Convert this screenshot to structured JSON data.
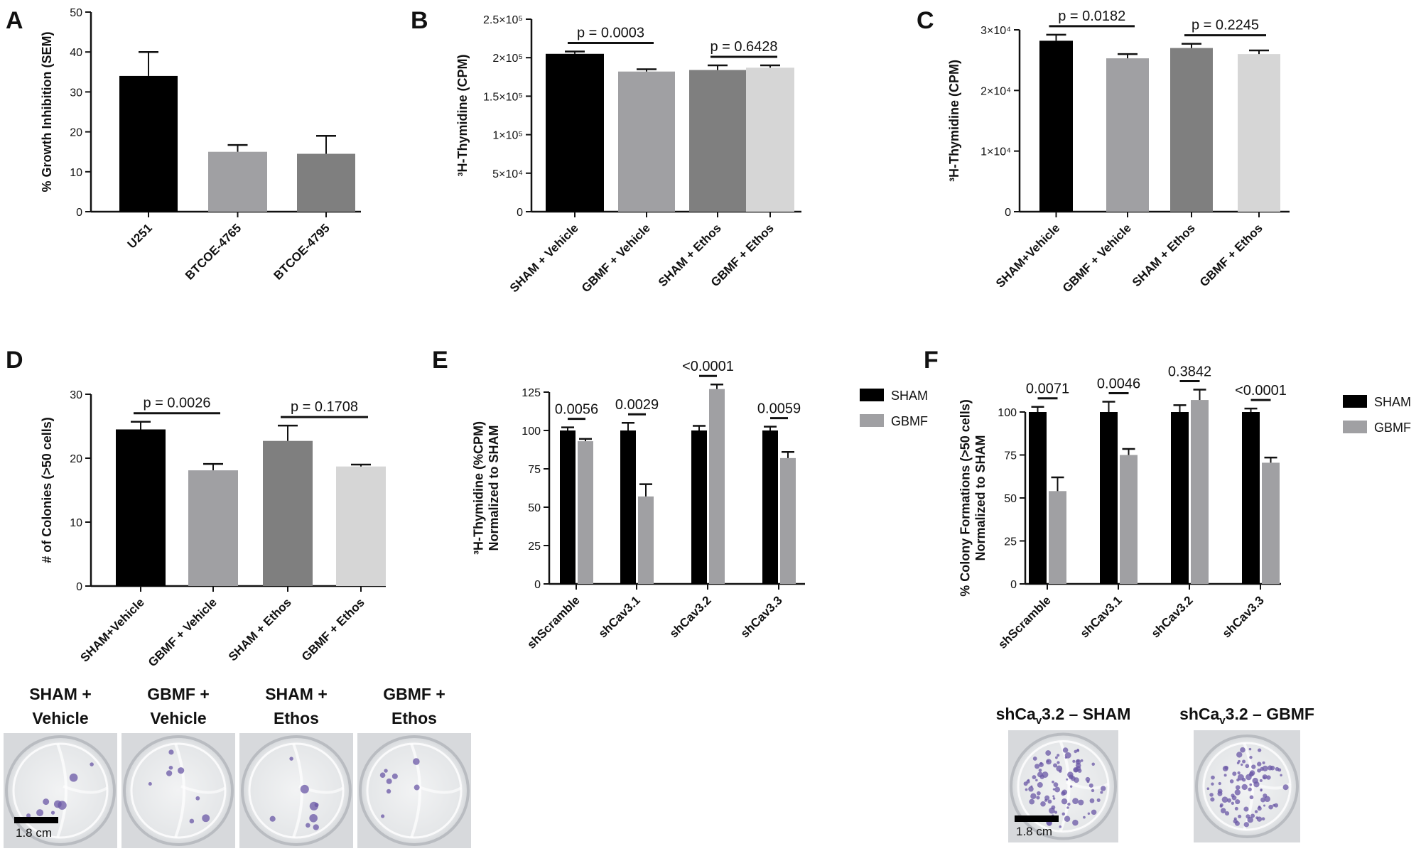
{
  "chart_data": [
    {
      "panel": "A",
      "type": "bar",
      "ylabel": "% Growth  Inhibition (SEM)",
      "ylim": [
        0,
        50
      ],
      "yticks": [
        "0",
        "10",
        "20",
        "30",
        "40",
        "50"
      ],
      "categories": [
        "U251",
        "BTCOE-4765",
        "BTCOE-4795"
      ],
      "values": [
        34,
        15,
        14.5
      ],
      "errors": [
        6,
        1.7,
        4.5
      ],
      "colors": [
        "#000000",
        "#a0a0a3",
        "#7f7f7f"
      ]
    },
    {
      "panel": "B",
      "type": "bar",
      "ylabel": "³H-Thymidine (CPM)",
      "ylim": [
        0,
        250000
      ],
      "yticks": [
        "0",
        "5×10⁴",
        "1×10⁵",
        "1.5×10⁵",
        "2×10⁵",
        "2.5×10⁵"
      ],
      "categories": [
        "SHAM + Vehicle",
        "GBMF + Vehicle",
        "SHAM + Ethos",
        "GBMF + Ethos"
      ],
      "values": [
        205000,
        182000,
        184000,
        187000
      ],
      "errors": [
        3000,
        3000,
        6000,
        3000
      ],
      "colors": [
        "#000000",
        "#a0a0a3",
        "#7f7f7f",
        "#d6d6d6"
      ],
      "comparisons": [
        {
          "from": 0,
          "to": 1,
          "label": "p = 0.0003"
        },
        {
          "from": 2,
          "to": 3,
          "label": "p = 0.6428"
        }
      ]
    },
    {
      "panel": "C",
      "type": "bar",
      "ylabel": "³H-Thymidine (CPM)",
      "ylim": [
        0,
        30000
      ],
      "yticks": [
        "0",
        "1×10⁴",
        "2×10⁴",
        "3×10⁴"
      ],
      "categories": [
        "SHAM+Vehicle",
        "GBMF + Vehicle",
        "SHAM + Ethos",
        "GBMF + Ethos"
      ],
      "values": [
        28200,
        25300,
        27000,
        26000
      ],
      "errors": [
        1000,
        700,
        700,
        600
      ],
      "colors": [
        "#000000",
        "#a0a0a3",
        "#7f7f7f",
        "#d6d6d6"
      ],
      "comparisons": [
        {
          "from": 0,
          "to": 1,
          "label": "p = 0.0182"
        },
        {
          "from": 2,
          "to": 3,
          "label": "p = 0.2245"
        }
      ]
    },
    {
      "panel": "D",
      "type": "bar",
      "ylabel": "# of Colonies (>50 cells)",
      "ylim": [
        0,
        30
      ],
      "yticks": [
        "0",
        "10",
        "20",
        "30"
      ],
      "categories": [
        "SHAM+Vehicle",
        "GBMF + Vehicle",
        "SHAM + Ethos",
        "GBMF + Ethos"
      ],
      "values": [
        24.5,
        18.1,
        22.7,
        18.7
      ],
      "errors": [
        1.2,
        1.0,
        2.4,
        0.3
      ],
      "colors": [
        "#000000",
        "#a0a0a3",
        "#7f7f7f",
        "#d6d6d6"
      ],
      "comparisons": [
        {
          "from": 0,
          "to": 1,
          "label": "p = 0.0026"
        },
        {
          "from": 2,
          "to": 3,
          "label": "p = 0.1708"
        }
      ]
    },
    {
      "panel": "E",
      "type": "bar",
      "ylabel": "³H-Thymidine (%CPM) Normalized to SHAM",
      "ylim": [
        0,
        125
      ],
      "yticks": [
        "0",
        "25",
        "50",
        "75",
        "100",
        "125"
      ],
      "categories": [
        "shScramble",
        "shCav3.1",
        "shCav3.2",
        "shCav3.3"
      ],
      "series": [
        {
          "name": "SHAM",
          "color": "#000000",
          "values": [
            100,
            100,
            100,
            100
          ],
          "errors": [
            2,
            5,
            3,
            2.5
          ]
        },
        {
          "name": "GBMF",
          "color": "#a0a0a3",
          "values": [
            93,
            57,
            127,
            82
          ],
          "errors": [
            1.5,
            8,
            3,
            4
          ]
        }
      ],
      "comparisons": [
        "0.0056",
        "0.0029",
        "<0.0001",
        "0.0059"
      ]
    },
    {
      "panel": "F",
      "type": "bar",
      "ylabel": "% Colony Formations (>50 cells) Normalized to SHAM",
      "ylim": [
        0,
        100
      ],
      "yticks": [
        "0",
        "25",
        "50",
        "75",
        "100"
      ],
      "categories": [
        "shScramble",
        "shCav3.1",
        "shCav3.2",
        "shCav3.3"
      ],
      "series": [
        {
          "name": "SHAM",
          "color": "#000000",
          "values": [
            100,
            100,
            100,
            100
          ],
          "errors": [
            3,
            6,
            4,
            2
          ]
        },
        {
          "name": "GBMF",
          "color": "#a0a0a3",
          "values": [
            54,
            75,
            107,
            70.5
          ],
          "errors": [
            8,
            3.5,
            6,
            3
          ]
        }
      ],
      "comparisons": [
        "0.0071",
        "0.0046",
        "0.3842",
        "<0.0001"
      ]
    }
  ],
  "panel_labels": [
    "A",
    "B",
    "C",
    "D",
    "E",
    "F"
  ],
  "photos_d": {
    "titles": [
      [
        "SHAM +",
        "Vehicle"
      ],
      [
        "GBMF +",
        "Vehicle"
      ],
      [
        "SHAM +",
        "Ethos"
      ],
      [
        "GBMF +",
        "Ethos"
      ]
    ],
    "scale_label": "1.8 cm"
  },
  "photos_f": {
    "titles": [
      {
        "pre": "shCa",
        "sub": "v",
        "post": "3.2 – SHAM"
      },
      {
        "pre": "shCa",
        "sub": "v",
        "post": "3.2 – GBMF"
      }
    ],
    "scale_label": "1.8 cm"
  }
}
